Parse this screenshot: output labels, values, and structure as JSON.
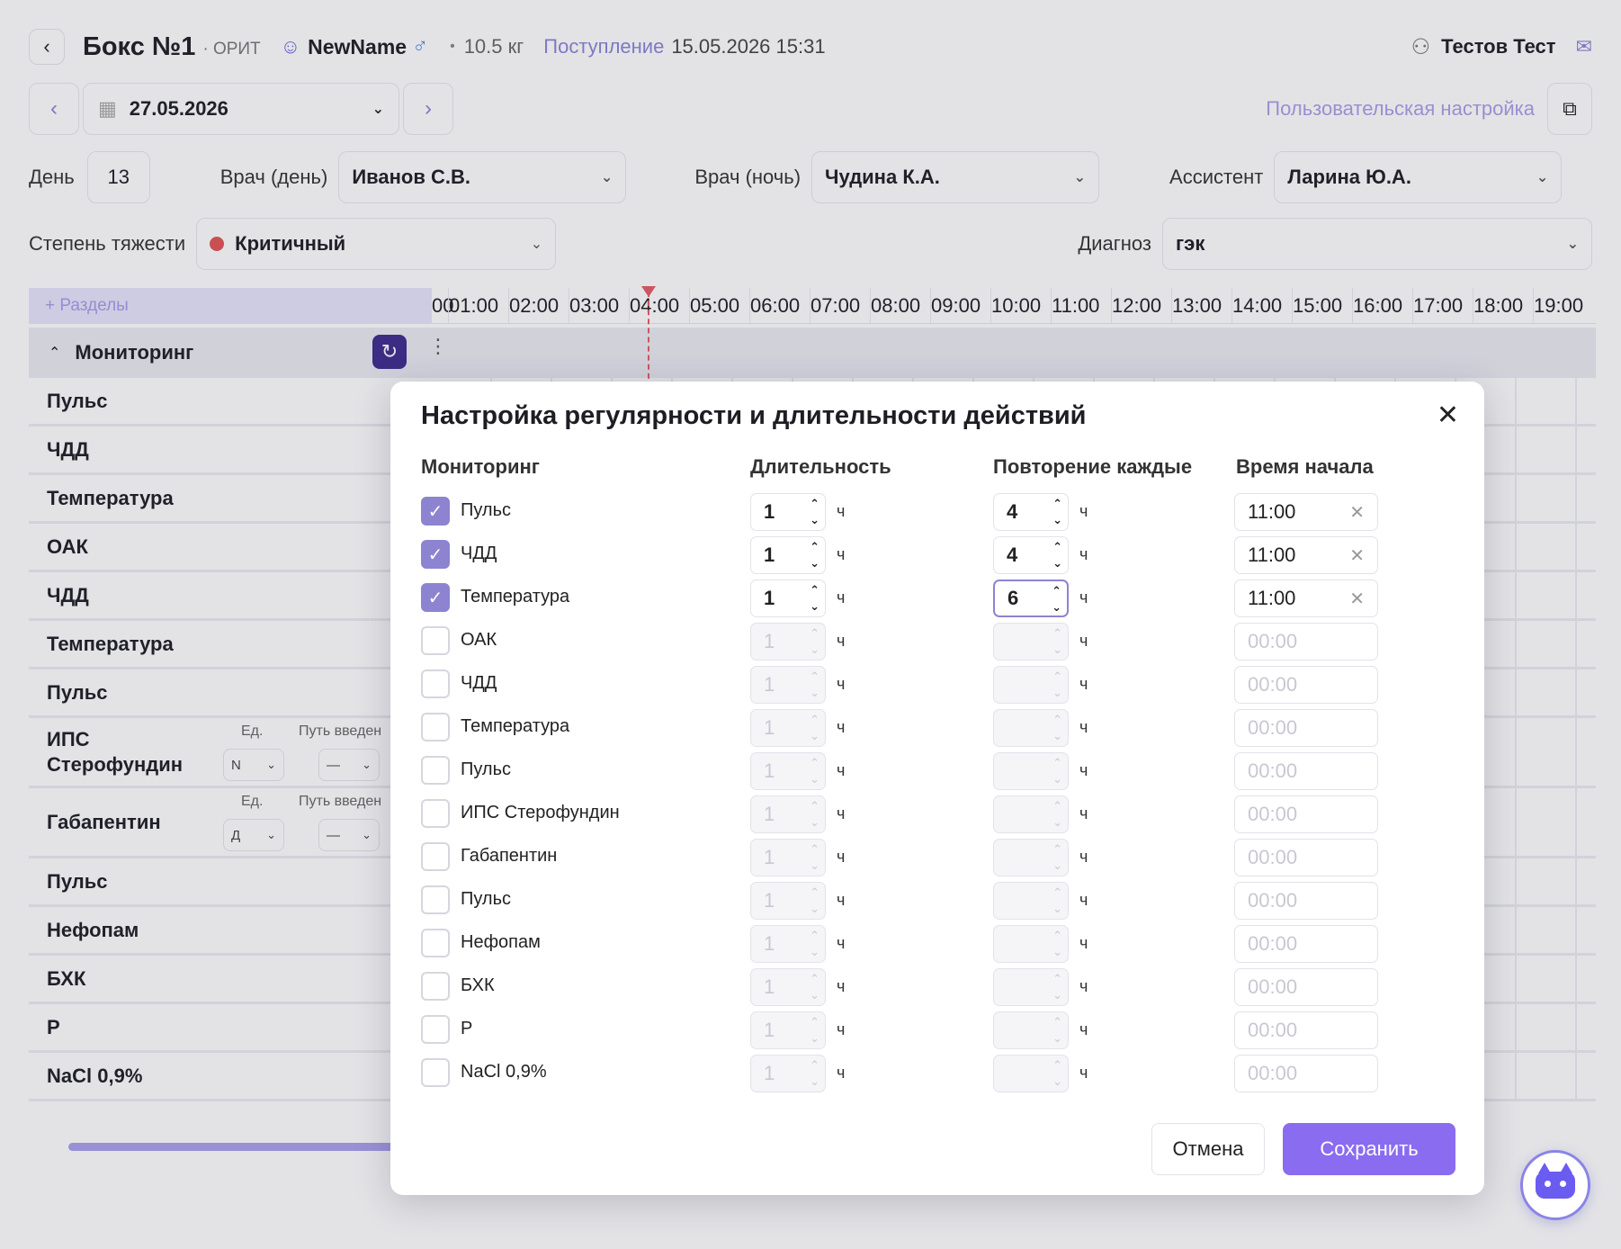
{
  "header": {
    "back_icon": "chevron-left-icon",
    "box_title": "Бокс №1",
    "box_dept": "· ОРИТ",
    "pet_name": "NewName",
    "weight_dot": "•",
    "weight": "10.5 кг",
    "admission_label": "Поступление",
    "admission_value": "15.05.2026 15:31",
    "user_name": "Тестов Тест"
  },
  "date_bar": {
    "date": "27.05.2026",
    "custom_setting_link": "Пользовательская настройка"
  },
  "fields": {
    "day_label": "День",
    "day_value": "13",
    "doctor_day_label": "Врач (день)",
    "doctor_day_value": "Иванов С.В.",
    "doctor_night_label": "Врач (ночь)",
    "doctor_night_value": "Чудина К.А.",
    "assistant_label": "Ассистент",
    "assistant_value": "Ларина Ю.А.",
    "severity_label": "Степень тяжести",
    "severity_value": "Критичный",
    "severity_color": "#e05454",
    "diagnosis_label": "Диагноз",
    "diagnosis_value": "гэк"
  },
  "timeline": {
    "sections_button": "+ Разделы",
    "hours": [
      "00",
      "01:00",
      "02:00",
      "03:00",
      "04:00",
      "05:00",
      "06:00",
      "07:00",
      "08:00",
      "09:00",
      "10:00",
      "11:00",
      "12:00",
      "13:00",
      "14:00",
      "15:00",
      "16:00",
      "17:00",
      "18:00",
      "19:00"
    ],
    "section_title": "Мониторинг",
    "rows": [
      {
        "label": "Пульс"
      },
      {
        "label": "ЧДД"
      },
      {
        "label": "Температура"
      },
      {
        "label": "ОАК"
      },
      {
        "label": "ЧДД"
      },
      {
        "label": "Температура"
      },
      {
        "label": "Пульс"
      },
      {
        "label": "ИПС Стерофундин",
        "unit_header": "Ед.",
        "route_header": "Путь введен",
        "unit_value": "N",
        "route_value": "—"
      },
      {
        "label": "Габапентин",
        "unit_header": "Ед.",
        "route_header": "Путь введен",
        "unit_value": "Д",
        "route_value": "—"
      },
      {
        "label": "Пульс"
      },
      {
        "label": "Нефопам"
      },
      {
        "label": "БХК"
      },
      {
        "label": "Р"
      },
      {
        "label": "NaCl 0,9%"
      }
    ]
  },
  "modal": {
    "title": "Настройка регулярности и длительности действий",
    "col_monitoring": "Мониторинг",
    "col_duration": "Длительность",
    "col_repeat": "Повторение каждые",
    "col_start": "Время начала",
    "unit": "ч",
    "items": [
      {
        "label": "Пульс",
        "checked": true,
        "duration": "1",
        "repeat": "4",
        "start": "11:00"
      },
      {
        "label": "ЧДД",
        "checked": true,
        "duration": "1",
        "repeat": "4",
        "start": "11:00"
      },
      {
        "label": "Температура",
        "checked": true,
        "duration": "1",
        "repeat": "6",
        "start": "11:00",
        "focused": true
      },
      {
        "label": "ОАК",
        "checked": false,
        "duration": "1",
        "repeat": "",
        "start": "00:00"
      },
      {
        "label": "ЧДД",
        "checked": false,
        "duration": "1",
        "repeat": "",
        "start": "00:00"
      },
      {
        "label": "Температура",
        "checked": false,
        "duration": "1",
        "repeat": "",
        "start": "00:00"
      },
      {
        "label": "Пульс",
        "checked": false,
        "duration": "1",
        "repeat": "",
        "start": "00:00"
      },
      {
        "label": "ИПС Стерофундин",
        "checked": false,
        "duration": "1",
        "repeat": "",
        "start": "00:00"
      },
      {
        "label": "Габапентин",
        "checked": false,
        "duration": "1",
        "repeat": "",
        "start": "00:00"
      },
      {
        "label": "Пульс",
        "checked": false,
        "duration": "1",
        "repeat": "",
        "start": "00:00"
      },
      {
        "label": "Нефопам",
        "checked": false,
        "duration": "1",
        "repeat": "",
        "start": "00:00"
      },
      {
        "label": "БХК",
        "checked": false,
        "duration": "1",
        "repeat": "",
        "start": "00:00"
      },
      {
        "label": "Р",
        "checked": false,
        "duration": "1",
        "repeat": "",
        "start": "00:00"
      },
      {
        "label": "NaCl 0,9%",
        "checked": false,
        "duration": "1",
        "repeat": "",
        "start": "00:00"
      }
    ],
    "cancel_label": "Отмена",
    "save_label": "Сохранить",
    "accent_color": "#8a6cf0"
  }
}
